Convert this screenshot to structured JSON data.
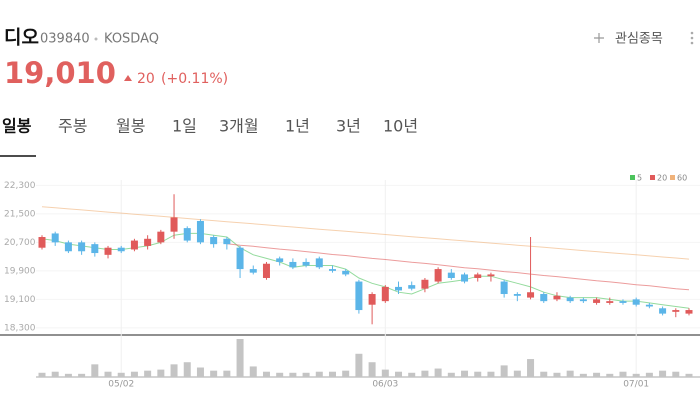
{
  "header": {
    "name": "디오",
    "code": "039840",
    "market": "KOSDAQ",
    "watch_label": "관심종목",
    "price": "19,010",
    "change": "20",
    "change_pct": "(+0.11%)"
  },
  "tabs": [
    "일봉",
    "주봉",
    "월봉",
    "1일",
    "3개월",
    "1년",
    "3년",
    "10년"
  ],
  "selected_tab": 0,
  "chart_data": {
    "type": "candlestick",
    "categories": [
      null,
      null,
      null,
      null,
      null,
      null,
      "05/02",
      null,
      null,
      null,
      null,
      null,
      null,
      null,
      null,
      null,
      null,
      null,
      null,
      null,
      null,
      null,
      null,
      null,
      null,
      null,
      "06/03",
      null,
      null,
      null,
      null,
      null,
      null,
      null,
      null,
      null,
      null,
      null,
      null,
      null,
      null,
      null,
      null,
      null,
      null,
      "07/01",
      null,
      null,
      null,
      null
    ],
    "open": [
      20550,
      20950,
      20700,
      20700,
      20650,
      20350,
      20550,
      20500,
      20600,
      20700,
      21000,
      21100,
      21300,
      20850,
      20800,
      20550,
      19950,
      19700,
      20250,
      20150,
      20150,
      20250,
      19950,
      19900,
      19600,
      18950,
      19050,
      19450,
      19500,
      19400,
      19600,
      19850,
      19800,
      19700,
      19750,
      19600,
      19250,
      19150,
      19250,
      19100,
      19150,
      19100,
      19000,
      19000,
      19050,
      19100,
      18950,
      18850,
      18750,
      18700
    ],
    "high": [
      20900,
      21000,
      20750,
      20750,
      20700,
      20600,
      20600,
      20800,
      20900,
      21050,
      22050,
      21150,
      21350,
      20900,
      20850,
      20600,
      20050,
      20150,
      20300,
      20250,
      20250,
      20300,
      20050,
      19950,
      19650,
      19300,
      19500,
      19600,
      19600,
      19700,
      20000,
      19950,
      19850,
      19850,
      19850,
      19650,
      19300,
      20850,
      19300,
      19300,
      19200,
      19150,
      19150,
      19150,
      19100,
      19150,
      19000,
      18900,
      18850,
      18850
    ],
    "low": [
      20500,
      20600,
      20400,
      20350,
      20300,
      20250,
      20400,
      20450,
      20500,
      20650,
      20800,
      20700,
      20650,
      20550,
      20500,
      19700,
      19800,
      19650,
      20050,
      19950,
      20000,
      19950,
      19850,
      19750,
      18700,
      18400,
      19000,
      19250,
      19350,
      19300,
      19550,
      19650,
      19550,
      19600,
      19600,
      19150,
      19050,
      19100,
      19000,
      19050,
      19000,
      19000,
      18950,
      18950,
      18950,
      18900,
      18850,
      18650,
      18600,
      18650
    ],
    "close": [
      20850,
      20700,
      20450,
      20450,
      20400,
      20550,
      20450,
      20750,
      20800,
      21000,
      21400,
      20750,
      20700,
      20650,
      20650,
      19950,
      19850,
      20100,
      20150,
      20000,
      20050,
      20000,
      19900,
      19800,
      18800,
      19250,
      19450,
      19350,
      19400,
      19650,
      19950,
      19700,
      19600,
      19800,
      19800,
      19250,
      19200,
      19300,
      19050,
      19200,
      19050,
      19050,
      19100,
      19050,
      19000,
      18950,
      18900,
      18700,
      18800,
      18800
    ],
    "volume": [
      12000,
      15000,
      9000,
      9000,
      36000,
      15000,
      12000,
      15000,
      18000,
      21000,
      36000,
      42000,
      27000,
      18000,
      18000,
      108000,
      30000,
      15000,
      12000,
      12000,
      12000,
      15000,
      15000,
      18000,
      66000,
      42000,
      21000,
      15000,
      12000,
      18000,
      24000,
      12000,
      18000,
      15000,
      15000,
      33000,
      18000,
      51000,
      15000,
      12000,
      18000,
      9000,
      12000,
      9000,
      15000,
      9000,
      12000,
      18000,
      15000,
      9000
    ],
    "up_color": "#e05a5a",
    "down_color": "#5bb5e8",
    "volume_color": "#c4c4c4",
    "series": [
      {
        "name": "5",
        "color": "#4cc35c",
        "values": [
          20800,
          20750,
          20650,
          20600,
          20550,
          20500,
          20500,
          20550,
          20600,
          20700,
          20900,
          20950,
          20950,
          20900,
          20850,
          20550,
          20350,
          20250,
          20150,
          20000,
          20050,
          20050,
          20050,
          19950,
          19700,
          19550,
          19450,
          19300,
          19250,
          19400,
          19550,
          19600,
          19650,
          19750,
          19750,
          19650,
          19550,
          19450,
          19300,
          19200,
          19150,
          19150,
          19150,
          19100,
          19050,
          19050,
          19000,
          18950,
          18900,
          18850
        ]
      },
      {
        "name": "20",
        "color": "#e05a5a",
        "values": [
          null,
          null,
          null,
          null,
          null,
          null,
          null,
          null,
          null,
          null,
          null,
          null,
          null,
          null,
          20660,
          20620,
          20590,
          20550,
          20510,
          20480,
          20440,
          20400,
          20360,
          20330,
          20290,
          20250,
          20220,
          20180,
          20140,
          20110,
          20070,
          20030,
          19990,
          19960,
          19920,
          19880,
          19850,
          19810,
          19770,
          19740,
          19700,
          19660,
          19620,
          19590,
          19550,
          19510,
          19480,
          19440,
          19400,
          19370
        ]
      },
      {
        "name": "60",
        "color": "#f0b27a",
        "values": [
          21700,
          21670,
          21640,
          21610,
          21580,
          21550,
          21520,
          21490,
          21460,
          21430,
          21400,
          21370,
          21340,
          21310,
          21280,
          21250,
          21220,
          21190,
          21160,
          21130,
          21100,
          21070,
          21040,
          21010,
          20980,
          20950,
          20920,
          20890,
          20860,
          20830,
          20800,
          20770,
          20740,
          20710,
          20680,
          20650,
          20620,
          20590,
          20560,
          20530,
          20500,
          20470,
          20440,
          20410,
          20380,
          20350,
          20320,
          20290,
          20260,
          20230
        ]
      }
    ],
    "ylim": [
      18100,
      22450
    ],
    "yticks": [
      {
        "value": 22300,
        "label": "22,300"
      },
      {
        "value": 21500,
        "label": "21,500"
      },
      {
        "value": 20700,
        "label": "20,700"
      },
      {
        "value": 19900,
        "label": "19,900"
      },
      {
        "value": 19100,
        "label": "19,100"
      },
      {
        "value": 18300,
        "label": "18,300"
      }
    ],
    "legend": "top-right"
  }
}
